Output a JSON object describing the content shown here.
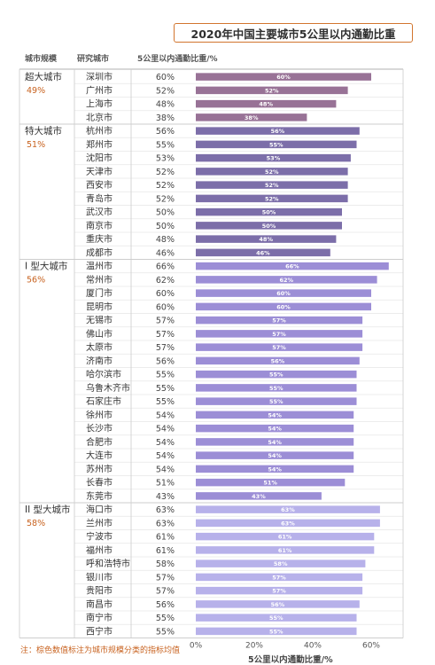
{
  "title": "2020年中国主要城市5公里以内通勤比重",
  "headers": {
    "tier": "城市规模",
    "city": "研究城市",
    "metric": "5公里以内通勤比重/%"
  },
  "footnote": "注：棕色数值标注为城市规模分类的指标均值",
  "colors": {
    "accent": "#c8621f",
    "超大城市": "#987296",
    "特大城市": "#7c6ea9",
    "I 型大城市": "#9c8ed6",
    "II 型大城市": "#b7b1ea"
  },
  "chart_data": {
    "type": "bar",
    "orientation": "horizontal",
    "xlabel": "5公里以内通勤比重/%",
    "xlim": [
      0,
      70
    ],
    "xticks": [
      "0%",
      "20%",
      "40%",
      "60%"
    ],
    "groups": [
      {
        "name": "超大城市",
        "mean": "49%",
        "cities": [
          "深圳市",
          "广州市",
          "上海市",
          "北京市"
        ],
        "values": [
          60,
          52,
          48,
          38
        ]
      },
      {
        "name": "特大城市",
        "mean": "51%",
        "cities": [
          "杭州市",
          "郑州市",
          "沈阳市",
          "天津市",
          "西安市",
          "青岛市",
          "武汉市",
          "南京市",
          "重庆市",
          "成都市"
        ],
        "values": [
          56,
          55,
          53,
          52,
          52,
          52,
          50,
          50,
          48,
          46
        ]
      },
      {
        "name": "I 型大城市",
        "mean": "56%",
        "cities": [
          "温州市",
          "常州市",
          "厦门市",
          "昆明市",
          "无锡市",
          "佛山市",
          "太原市",
          "济南市",
          "哈尔滨市",
          "乌鲁木齐市",
          "石家庄市",
          "徐州市",
          "长沙市",
          "合肥市",
          "大连市",
          "苏州市",
          "长春市",
          "东莞市"
        ],
        "values": [
          66,
          62,
          60,
          60,
          57,
          57,
          57,
          56,
          55,
          55,
          55,
          54,
          54,
          54,
          54,
          54,
          51,
          43
        ]
      },
      {
        "name": "II 型大城市",
        "mean": "58%",
        "cities": [
          "海口市",
          "兰州市",
          "宁波市",
          "福州市",
          "呼和浩特市",
          "银川市",
          "贵阳市",
          "南昌市",
          "南宁市",
          "西宁市"
        ],
        "values": [
          63,
          63,
          61,
          61,
          58,
          57,
          57,
          56,
          55,
          55
        ]
      }
    ]
  }
}
